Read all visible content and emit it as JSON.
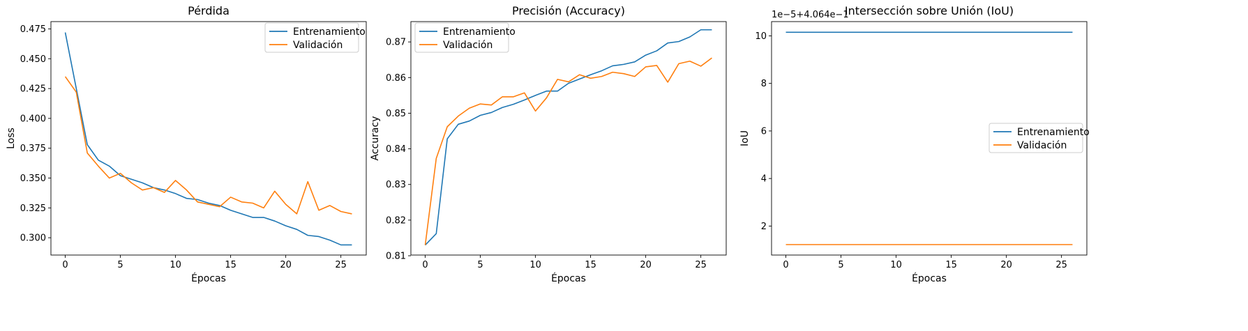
{
  "chart_data": [
    {
      "type": "line",
      "title": "Pérdida",
      "xlabel": "Épocas",
      "ylabel": "Loss",
      "xlim": [
        -1.3,
        27.3
      ],
      "ylim": [
        0.2855,
        0.4811
      ],
      "xticks": [
        0,
        5,
        10,
        15,
        20,
        25
      ],
      "xtick_labels": [
        "0",
        "5",
        "10",
        "15",
        "20",
        "25"
      ],
      "yticks": [
        0.3,
        0.325,
        0.35,
        0.375,
        0.4,
        0.425,
        0.45,
        0.475
      ],
      "ytick_labels": [
        "0.300",
        "0.325",
        "0.350",
        "0.375",
        "0.400",
        "0.425",
        "0.450",
        "0.475"
      ],
      "legend_position": "upper right",
      "x": [
        0,
        1,
        2,
        3,
        4,
        5,
        6,
        7,
        8,
        9,
        10,
        11,
        12,
        13,
        14,
        15,
        16,
        17,
        18,
        19,
        20,
        21,
        22,
        23,
        24,
        25,
        26
      ],
      "series": [
        {
          "name": "Entrenamiento",
          "color": "#1f77b4",
          "values": [
            0.472,
            0.425,
            0.378,
            0.365,
            0.36,
            0.352,
            0.349,
            0.346,
            0.342,
            0.34,
            0.337,
            0.333,
            0.332,
            0.329,
            0.327,
            0.323,
            0.32,
            0.317,
            0.317,
            0.314,
            0.31,
            0.307,
            0.302,
            0.301,
            0.298,
            0.294,
            0.294
          ]
        },
        {
          "name": "Validación",
          "color": "#ff7f0e",
          "values": [
            0.435,
            0.422,
            0.371,
            0.36,
            0.35,
            0.354,
            0.346,
            0.34,
            0.342,
            0.338,
            0.348,
            0.34,
            0.33,
            0.328,
            0.326,
            0.334,
            0.33,
            0.329,
            0.325,
            0.339,
            0.328,
            0.32,
            0.347,
            0.323,
            0.327,
            0.322,
            0.32
          ]
        }
      ]
    },
    {
      "type": "line",
      "title": "Precisión (Accuracy)",
      "xlabel": "Épocas",
      "ylabel": "Accuracy",
      "xlim": [
        -1.3,
        27.3
      ],
      "ylim": [
        0.8102,
        0.8757
      ],
      "xticks": [
        0,
        5,
        10,
        15,
        20,
        25
      ],
      "xtick_labels": [
        "0",
        "5",
        "10",
        "15",
        "20",
        "25"
      ],
      "yticks": [
        0.81,
        0.82,
        0.83,
        0.84,
        0.85,
        0.86,
        0.87
      ],
      "ytick_labels": [
        "0.81",
        "0.82",
        "0.83",
        "0.84",
        "0.85",
        "0.86",
        "0.87"
      ],
      "legend_position": "upper left",
      "x": [
        0,
        1,
        2,
        3,
        4,
        5,
        6,
        7,
        8,
        9,
        10,
        11,
        12,
        13,
        14,
        15,
        16,
        17,
        18,
        19,
        20,
        21,
        22,
        23,
        24,
        25,
        26
      ],
      "series": [
        {
          "name": "Entrenamiento",
          "color": "#1f77b4",
          "values": [
            0.813,
            0.8162,
            0.8428,
            0.8469,
            0.8478,
            0.8494,
            0.8502,
            0.8516,
            0.8525,
            0.8537,
            0.855,
            0.8562,
            0.8562,
            0.8584,
            0.8596,
            0.8608,
            0.8619,
            0.8633,
            0.8637,
            0.8644,
            0.8663,
            0.8675,
            0.8697,
            0.8701,
            0.8714,
            0.8734,
            0.8734
          ]
        },
        {
          "name": "Validación",
          "color": "#ff7f0e",
          "values": [
            0.813,
            0.8373,
            0.8462,
            0.8492,
            0.8514,
            0.8526,
            0.8523,
            0.8546,
            0.8546,
            0.8557,
            0.8506,
            0.8543,
            0.8595,
            0.8588,
            0.8608,
            0.8598,
            0.8603,
            0.8615,
            0.8611,
            0.8603,
            0.863,
            0.8634,
            0.8587,
            0.8639,
            0.8646,
            0.8632,
            0.8655
          ]
        }
      ]
    },
    {
      "type": "line",
      "title": "Intersección sobre Unión (IoU)",
      "xlabel": "Épocas",
      "ylabel": "IoU",
      "offset_text": "1e−5+4.064e−1",
      "xlim": [
        -1.3,
        27.3
      ],
      "ylim": [
        0.78,
        10.6
      ],
      "xticks": [
        0,
        5,
        10,
        15,
        20,
        25
      ],
      "xtick_labels": [
        "0",
        "5",
        "10",
        "15",
        "20",
        "25"
      ],
      "yticks": [
        2,
        4,
        6,
        8,
        10
      ],
      "ytick_labels": [
        "2",
        "4",
        "6",
        "8",
        "10"
      ],
      "legend_position": "center right",
      "x": [
        0,
        1,
        2,
        3,
        4,
        5,
        6,
        7,
        8,
        9,
        10,
        11,
        12,
        13,
        14,
        15,
        16,
        17,
        18,
        19,
        20,
        21,
        22,
        23,
        24,
        25,
        26
      ],
      "series": [
        {
          "name": "Entrenamiento",
          "color": "#1f77b4",
          "values": [
            10.15,
            10.15,
            10.15,
            10.15,
            10.15,
            10.15,
            10.15,
            10.15,
            10.15,
            10.15,
            10.15,
            10.15,
            10.15,
            10.15,
            10.15,
            10.15,
            10.15,
            10.15,
            10.15,
            10.15,
            10.15,
            10.15,
            10.15,
            10.15,
            10.15,
            10.15,
            10.15
          ]
        },
        {
          "name": "Validación",
          "color": "#ff7f0e",
          "values": [
            1.22,
            1.22,
            1.22,
            1.22,
            1.22,
            1.22,
            1.22,
            1.22,
            1.22,
            1.22,
            1.22,
            1.22,
            1.22,
            1.22,
            1.22,
            1.22,
            1.22,
            1.22,
            1.22,
            1.22,
            1.22,
            1.22,
            1.22,
            1.22,
            1.22,
            1.22,
            1.22
          ]
        }
      ]
    }
  ]
}
